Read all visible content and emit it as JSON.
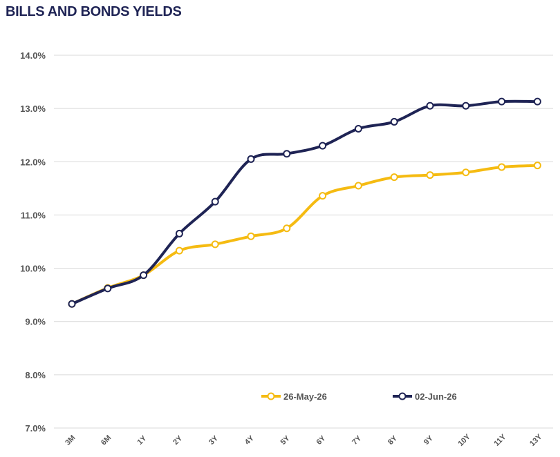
{
  "chart_data": {
    "type": "line",
    "title": "BILLS AND BONDS YIELDS",
    "categories": [
      "3M",
      "6M",
      "1Y",
      "2Y",
      "3Y",
      "4Y",
      "5Y",
      "6Y",
      "7Y",
      "8Y",
      "9Y",
      "10Y",
      "11Y",
      "13Y"
    ],
    "ylim": [
      7.0,
      14.0
    ],
    "yticks": [
      "7.0%",
      "8.0%",
      "9.0%",
      "10.0%",
      "11.0%",
      "12.0%",
      "13.0%",
      "14.0%"
    ],
    "ytick_values": [
      7,
      8,
      9,
      10,
      11,
      12,
      13,
      14
    ],
    "grid": true,
    "legend_position": "bottom-right",
    "series": [
      {
        "name": "26-May-26",
        "color": "#f5bb12",
        "values": [
          9.33,
          9.63,
          9.87,
          10.33,
          10.45,
          10.6,
          10.75,
          11.36,
          11.55,
          11.71,
          11.75,
          11.8,
          11.9,
          11.93
        ]
      },
      {
        "name": "02-Jun-26",
        "color": "#1f2455",
        "values": [
          9.33,
          9.62,
          9.87,
          10.65,
          11.25,
          12.05,
          12.15,
          12.3,
          12.62,
          12.75,
          13.05,
          13.05,
          13.13,
          13.13
        ]
      }
    ]
  }
}
